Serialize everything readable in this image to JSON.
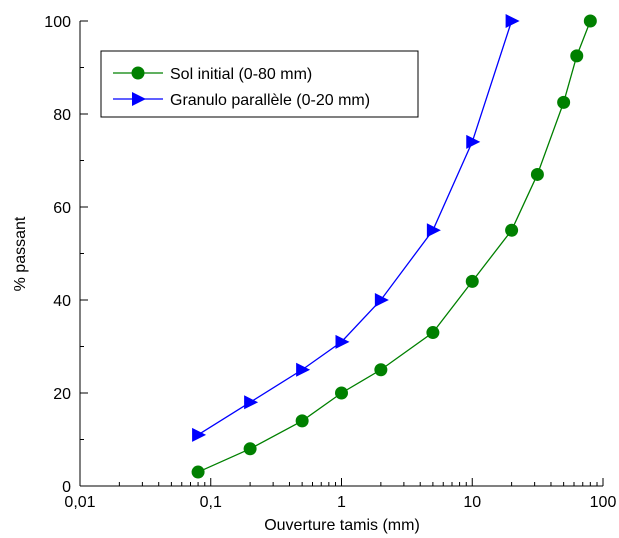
{
  "chart_data": {
    "type": "line",
    "title": "",
    "xlabel": "Ouverture tamis (mm)",
    "ylabel": "% passant",
    "x_scale": "log",
    "xlim": [
      0.01,
      100
    ],
    "ylim": [
      0,
      100
    ],
    "x_ticks": [
      0.01,
      0.1,
      1,
      10,
      100
    ],
    "x_tick_labels": [
      "0,01",
      "0,1",
      "1",
      "10",
      "100"
    ],
    "y_ticks": [
      0,
      20,
      40,
      60,
      80,
      100
    ],
    "y_tick_labels": [
      "0",
      "20",
      "40",
      "60",
      "80",
      "100"
    ],
    "grid": false,
    "legend_position": "top-left",
    "series": [
      {
        "name": "Sol initial (0-80 mm)",
        "color": "#008000",
        "marker": "circle",
        "x": [
          0.08,
          0.2,
          0.5,
          1,
          2,
          5,
          10,
          20,
          31.5,
          50,
          63,
          80
        ],
        "y": [
          3,
          8,
          14,
          20,
          25,
          33,
          44,
          55,
          67,
          82.5,
          92.5,
          100
        ]
      },
      {
        "name": "Granulo parallèle (0-20 mm)",
        "color": "#0000ff",
        "marker": "triangle-right",
        "x": [
          0.08,
          0.2,
          0.5,
          1,
          2,
          5,
          10,
          20
        ],
        "y": [
          11,
          18,
          25,
          31,
          40,
          55,
          74,
          100
        ]
      }
    ]
  }
}
